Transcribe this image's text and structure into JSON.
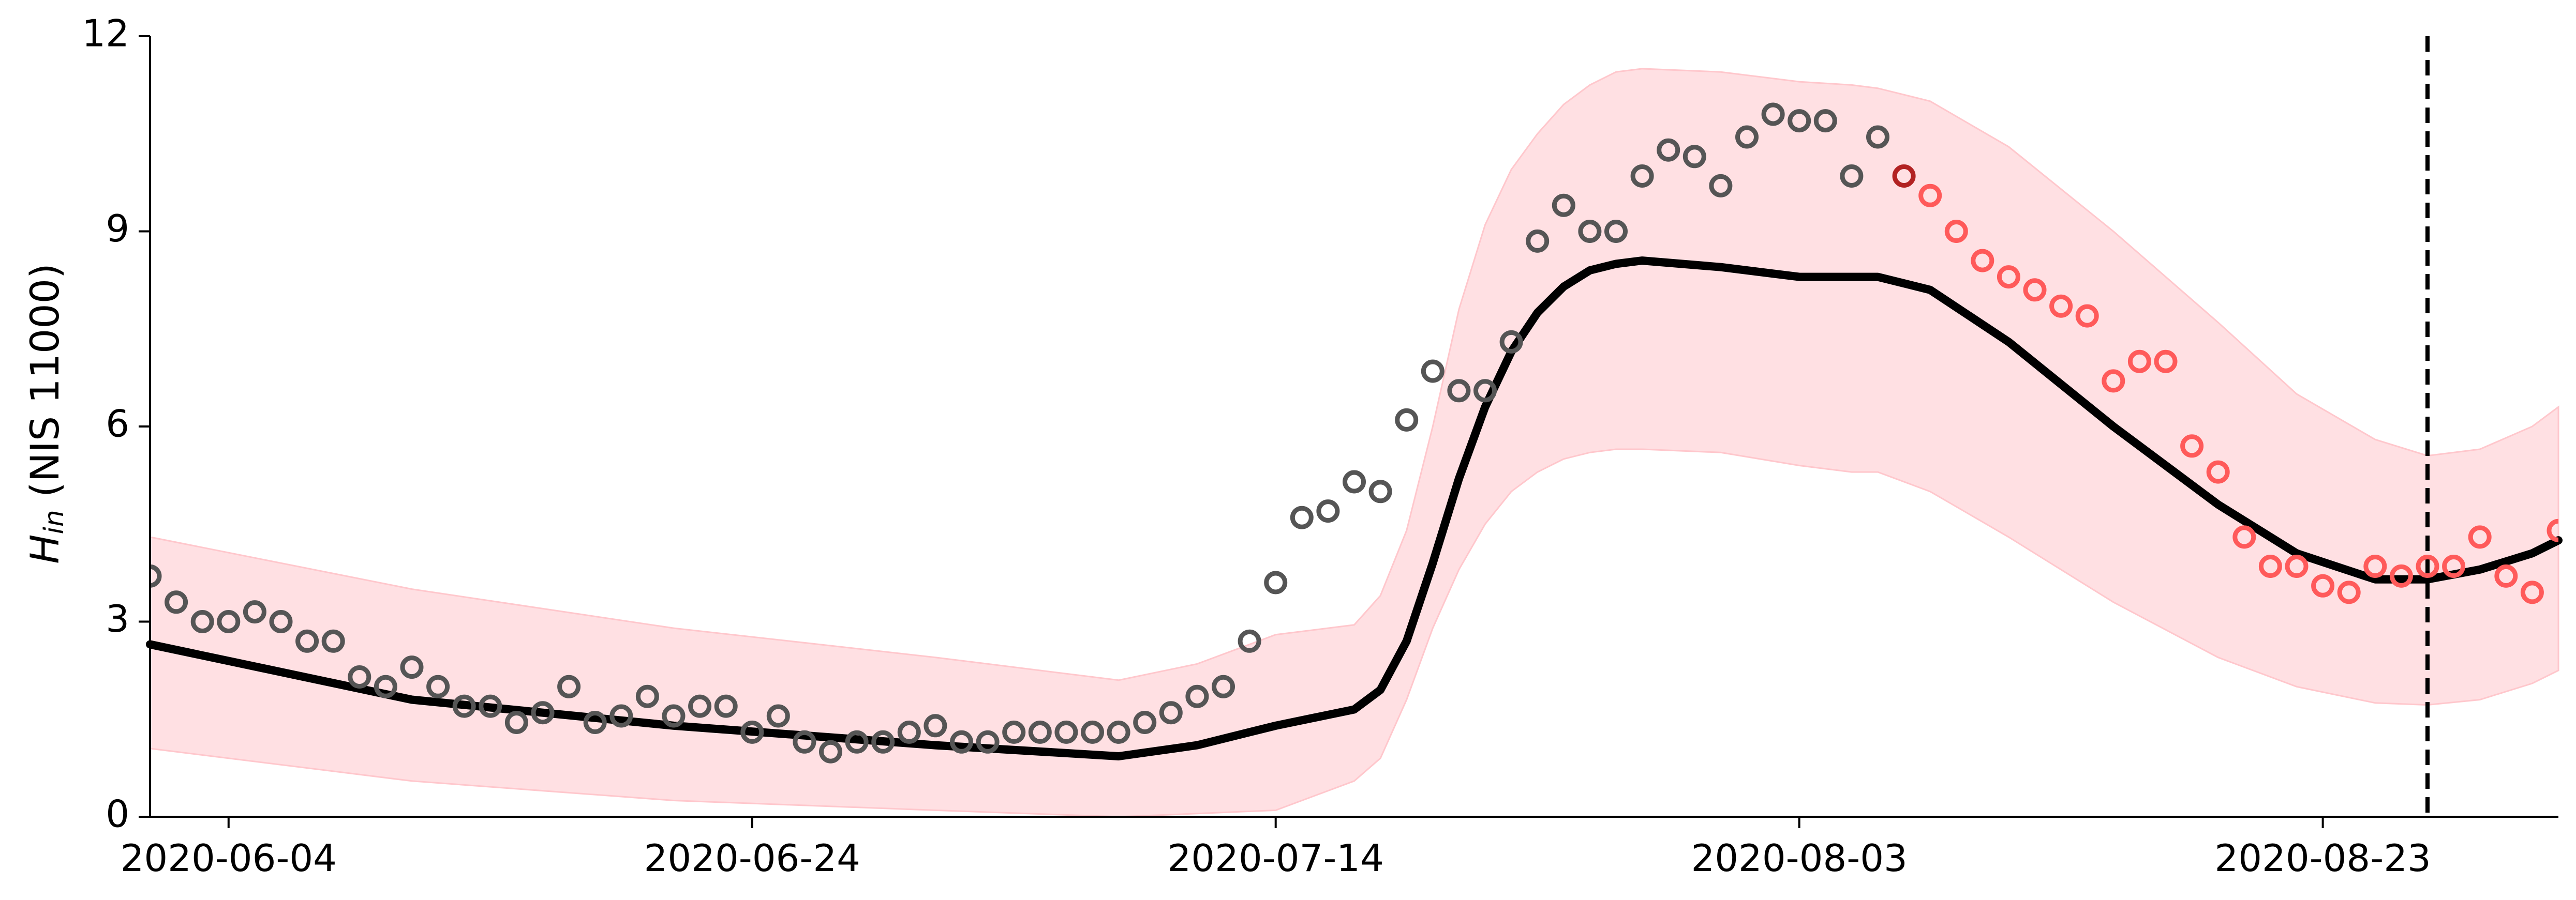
{
  "chart_data": {
    "type": "scatter",
    "title": "",
    "ylabel": "H_in (NIS 11000)",
    "ylabel_parts": {
      "main": "H",
      "sub": "in",
      "rest": " (NIS 11000)"
    },
    "xlabel": "",
    "x_axis": {
      "type": "date",
      "range": [
        "2020-06-01",
        "2020-09-01"
      ]
    },
    "ylim": [
      0,
      12
    ],
    "yticks": [
      0,
      3,
      6,
      9,
      12
    ],
    "xticks": [
      "2020-06-04",
      "2020-06-24",
      "2020-07-14",
      "2020-08-03",
      "2020-08-23"
    ],
    "grid": false,
    "legend": "none",
    "vline": {
      "x": "2020-08-27",
      "style": "dashed",
      "color": "#000000"
    },
    "colors": {
      "observed": "#555555",
      "forecast": "#ff5a5a",
      "highlight": "#b22222",
      "fit_line": "#000000",
      "band_fill": "#ffe0e3",
      "band_edge": "#ffc7cc"
    },
    "series": [
      {
        "role": "observed",
        "marker": "open-circle",
        "x": [
          "2020-06-01",
          "2020-06-02",
          "2020-06-03",
          "2020-06-04",
          "2020-06-05",
          "2020-06-06",
          "2020-06-07",
          "2020-06-08",
          "2020-06-09",
          "2020-06-10",
          "2020-06-11",
          "2020-06-12",
          "2020-06-13",
          "2020-06-14",
          "2020-06-15",
          "2020-06-16",
          "2020-06-17",
          "2020-06-18",
          "2020-06-19",
          "2020-06-20",
          "2020-06-21",
          "2020-06-22",
          "2020-06-23",
          "2020-06-24",
          "2020-06-25",
          "2020-06-26",
          "2020-06-27",
          "2020-06-28",
          "2020-06-29",
          "2020-06-30",
          "2020-07-01",
          "2020-07-02",
          "2020-07-03",
          "2020-07-04",
          "2020-07-05",
          "2020-07-06",
          "2020-07-07",
          "2020-07-08",
          "2020-07-09",
          "2020-07-10",
          "2020-07-11",
          "2020-07-12",
          "2020-07-13",
          "2020-07-14",
          "2020-07-15",
          "2020-07-16",
          "2020-07-17",
          "2020-07-18",
          "2020-07-19",
          "2020-07-20",
          "2020-07-21",
          "2020-07-22",
          "2020-07-23",
          "2020-07-24",
          "2020-07-25",
          "2020-07-26",
          "2020-07-27",
          "2020-07-28",
          "2020-07-29",
          "2020-07-30",
          "2020-07-31",
          "2020-08-01",
          "2020-08-02",
          "2020-08-03",
          "2020-08-04",
          "2020-08-05",
          "2020-08-06"
        ],
        "y": [
          3.7,
          3.3,
          3.0,
          3.0,
          3.15,
          3.0,
          2.7,
          2.7,
          2.15,
          2.0,
          2.3,
          2.0,
          1.7,
          1.7,
          1.45,
          1.6,
          2.0,
          1.45,
          1.55,
          1.85,
          1.55,
          1.7,
          1.7,
          1.3,
          1.55,
          1.15,
          1.0,
          1.15,
          1.15,
          1.3,
          1.4,
          1.15,
          1.15,
          1.3,
          1.3,
          1.3,
          1.3,
          1.3,
          1.45,
          1.6,
          1.85,
          2.0,
          2.7,
          3.6,
          4.6,
          4.7,
          5.15,
          5.0,
          6.1,
          6.85,
          6.55,
          6.55,
          7.3,
          8.85,
          9.4,
          9.0,
          9.0,
          9.85,
          10.25,
          10.15,
          9.7,
          10.45,
          10.8,
          10.7,
          10.7,
          9.85,
          10.45
        ]
      },
      {
        "role": "highlight",
        "marker": "open-circle",
        "x": [
          "2020-08-07"
        ],
        "y": [
          9.85
        ]
      },
      {
        "role": "forecast",
        "marker": "open-circle",
        "x": [
          "2020-08-08",
          "2020-08-09",
          "2020-08-10",
          "2020-08-11",
          "2020-08-12",
          "2020-08-13",
          "2020-08-14",
          "2020-08-15",
          "2020-08-16",
          "2020-08-17",
          "2020-08-18",
          "2020-08-19",
          "2020-08-20",
          "2020-08-21",
          "2020-08-22",
          "2020-08-23",
          "2020-08-24",
          "2020-08-25",
          "2020-08-26",
          "2020-08-27",
          "2020-08-28",
          "2020-08-29",
          "2020-08-30",
          "2020-08-31",
          "2020-09-01"
        ],
        "y": [
          9.55,
          9.0,
          8.55,
          8.3,
          8.1,
          7.85,
          7.7,
          6.7,
          7.0,
          7.0,
          5.7,
          5.3,
          4.3,
          3.85,
          3.85,
          3.55,
          3.45,
          3.85,
          3.7,
          3.85,
          3.85,
          4.3,
          3.7,
          3.45,
          4.4
        ]
      },
      {
        "role": "fit_line",
        "x": [
          "2020-06-01",
          "2020-06-11",
          "2020-06-21",
          "2020-07-01",
          "2020-07-08",
          "2020-07-11",
          "2020-07-14",
          "2020-07-17",
          "2020-07-18",
          "2020-07-19",
          "2020-07-20",
          "2020-07-21",
          "2020-07-22",
          "2020-07-23",
          "2020-07-24",
          "2020-07-25",
          "2020-07-26",
          "2020-07-27",
          "2020-07-28",
          "2020-07-31",
          "2020-08-03",
          "2020-08-05",
          "2020-08-06",
          "2020-08-08",
          "2020-08-11",
          "2020-08-15",
          "2020-08-19",
          "2020-08-22",
          "2020-08-25",
          "2020-08-27",
          "2020-08-29",
          "2020-08-31",
          "2020-09-01"
        ],
        "y": [
          2.65,
          1.8,
          1.4,
          1.1,
          0.93,
          1.1,
          1.4,
          1.65,
          1.95,
          2.7,
          3.9,
          5.2,
          6.3,
          7.15,
          7.75,
          8.15,
          8.4,
          8.5,
          8.55,
          8.45,
          8.3,
          8.3,
          8.3,
          8.1,
          7.3,
          6.0,
          4.8,
          4.05,
          3.65,
          3.65,
          3.8,
          4.05,
          4.25
        ]
      },
      {
        "role": "band",
        "x": [
          "2020-06-01",
          "2020-06-11",
          "2020-06-21",
          "2020-07-01",
          "2020-07-08",
          "2020-07-11",
          "2020-07-14",
          "2020-07-17",
          "2020-07-18",
          "2020-07-19",
          "2020-07-20",
          "2020-07-21",
          "2020-07-22",
          "2020-07-23",
          "2020-07-24",
          "2020-07-25",
          "2020-07-26",
          "2020-07-27",
          "2020-07-28",
          "2020-07-31",
          "2020-08-03",
          "2020-08-05",
          "2020-08-06",
          "2020-08-08",
          "2020-08-11",
          "2020-08-15",
          "2020-08-19",
          "2020-08-22",
          "2020-08-25",
          "2020-08-27",
          "2020-08-29",
          "2020-08-31",
          "2020-09-01"
        ],
        "upper": [
          4.3,
          3.5,
          2.9,
          2.45,
          2.1,
          2.35,
          2.8,
          2.95,
          3.4,
          4.4,
          6.0,
          7.8,
          9.1,
          9.95,
          10.5,
          10.95,
          11.25,
          11.45,
          11.5,
          11.45,
          11.3,
          11.25,
          11.2,
          11.0,
          10.3,
          9.0,
          7.6,
          6.5,
          5.8,
          5.55,
          5.65,
          6.0,
          6.3
        ],
        "lower": [
          1.05,
          0.55,
          0.25,
          0.1,
          0.0,
          0.05,
          0.1,
          0.55,
          0.9,
          1.8,
          2.9,
          3.8,
          4.5,
          5.0,
          5.3,
          5.5,
          5.6,
          5.65,
          5.65,
          5.6,
          5.4,
          5.3,
          5.3,
          5.0,
          4.3,
          3.3,
          2.45,
          2.0,
          1.75,
          1.72,
          1.8,
          2.05,
          2.25
        ]
      }
    ]
  }
}
